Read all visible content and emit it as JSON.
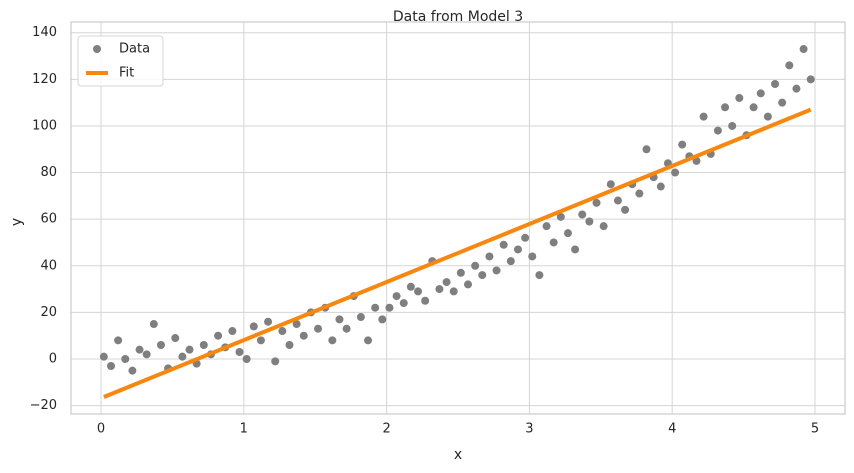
{
  "chart_data": {
    "type": "scatter",
    "title": "Data from Model 3",
    "x_label": "x",
    "y_label": "y",
    "xlim": [
      -0.21,
      5.21
    ],
    "ylim": [
      -23.6,
      144.6
    ],
    "xticks": [
      0,
      1,
      2,
      3,
      4,
      5
    ],
    "yticks": [
      {
        "value": -20,
        "label": "−20"
      },
      0,
      20,
      40,
      60,
      80,
      100,
      120,
      140
    ],
    "grid": true,
    "legend": "upper left",
    "series": [
      {
        "name": "Data",
        "type": "scatter",
        "color": "#7f7f7f",
        "x": [
          0.02,
          0.07,
          0.12,
          0.17,
          0.22,
          0.27,
          0.32,
          0.37,
          0.42,
          0.47,
          0.52,
          0.57,
          0.62,
          0.67,
          0.72,
          0.77,
          0.82,
          0.87,
          0.92,
          0.97,
          1.02,
          1.07,
          1.12,
          1.17,
          1.22,
          1.27,
          1.32,
          1.37,
          1.42,
          1.47,
          1.52,
          1.57,
          1.62,
          1.67,
          1.72,
          1.77,
          1.82,
          1.87,
          1.92,
          1.97,
          2.02,
          2.07,
          2.12,
          2.17,
          2.22,
          2.27,
          2.32,
          2.37,
          2.42,
          2.47,
          2.52,
          2.57,
          2.62,
          2.67,
          2.72,
          2.77,
          2.82,
          2.87,
          2.92,
          2.97,
          3.02,
          3.07,
          3.12,
          3.17,
          3.22,
          3.27,
          3.32,
          3.37,
          3.42,
          3.47,
          3.52,
          3.57,
          3.62,
          3.67,
          3.72,
          3.77,
          3.82,
          3.87,
          3.92,
          3.97,
          4.02,
          4.07,
          4.12,
          4.17,
          4.22,
          4.27,
          4.32,
          4.37,
          4.42,
          4.47,
          4.52,
          4.57,
          4.62,
          4.67,
          4.72,
          4.77,
          4.82,
          4.87,
          4.92,
          4.97
        ],
        "values": [
          1,
          -3,
          8,
          0,
          -5,
          4,
          2,
          15,
          6,
          -4,
          9,
          1,
          4,
          -2,
          6,
          2,
          10,
          5,
          12,
          3,
          0,
          14,
          8,
          16,
          -1,
          12,
          6,
          15,
          10,
          20,
          13,
          22,
          8,
          17,
          13,
          27,
          18,
          8,
          22,
          17,
          22,
          27,
          24,
          31,
          29,
          25,
          42,
          30,
          33,
          29,
          37,
          32,
          40,
          36,
          44,
          38,
          49,
          42,
          47,
          52,
          44,
          36,
          57,
          50,
          61,
          54,
          47,
          62,
          59,
          67,
          57,
          75,
          68,
          64,
          75,
          71,
          90,
          78,
          74,
          84,
          80,
          92,
          87,
          85,
          104,
          88,
          98,
          108,
          100,
          112,
          96,
          108,
          114,
          104,
          118,
          110,
          126,
          116,
          133,
          120
        ]
      },
      {
        "name": "Fit",
        "type": "line",
        "color": "#f7870f",
        "x": [
          0.02,
          4.97
        ],
        "values": [
          -16.3,
          107
        ]
      }
    ]
  }
}
